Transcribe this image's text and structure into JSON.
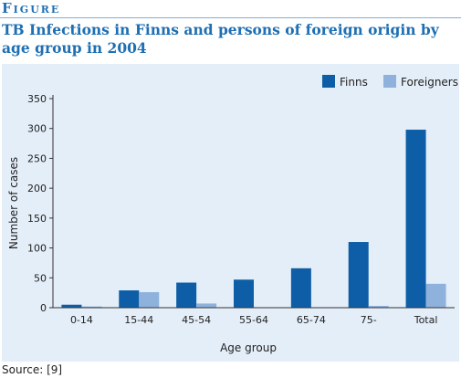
{
  "figure_label": "Figure",
  "title": "TB Infections in Finns and persons of foreign origin by age group in 2004",
  "source": "Source: [9]",
  "colors": {
    "finns": "#0d5ea6",
    "foreigners": "#8fb2dc",
    "chart_bg": "#e4eef8",
    "title": "#1e6fb3"
  },
  "chart_data": {
    "type": "bar",
    "title": "TB Infections in Finns and persons of foreign origin by age group in 2004",
    "xlabel": "Age group",
    "ylabel": "Number of cases",
    "ylim": [
      0,
      350
    ],
    "yticks": [
      0,
      50,
      100,
      150,
      200,
      250,
      300,
      350
    ],
    "categories": [
      "0-14",
      "15-44",
      "45-54",
      "55-64",
      "65-74",
      "75-",
      "Total"
    ],
    "series": [
      {
        "name": "Finns",
        "values": [
          5,
          29,
          42,
          47,
          66,
          110,
          298
        ]
      },
      {
        "name": "Foreigners",
        "values": [
          2,
          26,
          7,
          0,
          0,
          3,
          40
        ]
      }
    ],
    "legend_position": "top-right",
    "grid": false
  }
}
